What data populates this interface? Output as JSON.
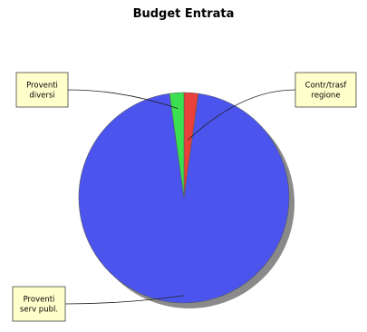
{
  "chart_data": {
    "type": "pie",
    "title": "Budget Entrata",
    "slices": [
      {
        "label": "Contr/trasf regione",
        "label_lines": [
          "Contr/trasf",
          "regione"
        ],
        "value": 2.2,
        "color": "#E8403A"
      },
      {
        "label": "Proventi serv publ.",
        "label_lines": [
          "Proventi",
          "serv publ."
        ],
        "value": 95.6,
        "color": "#4B55EE"
      },
      {
        "label": "Proventi diversi",
        "label_lines": [
          "Proventi",
          "diversi"
        ],
        "value": 2.2,
        "color": "#3BDF50"
      }
    ],
    "start_angle_deg": 0,
    "direction": "clockwise",
    "legend": "callouts",
    "callout_background": "#FFFFCC",
    "shadow_color": "#8A8A8A"
  }
}
